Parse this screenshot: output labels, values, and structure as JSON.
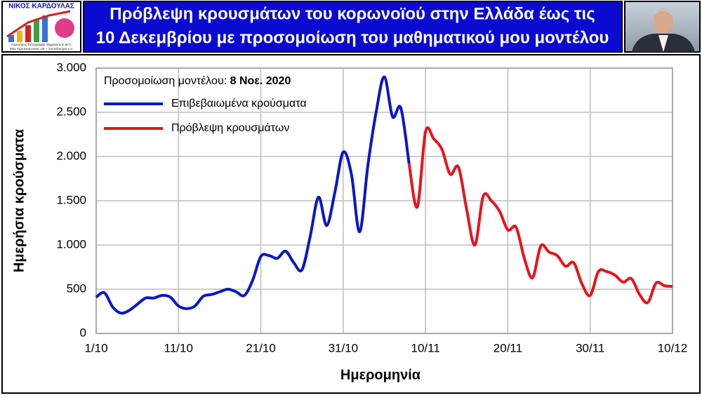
{
  "header": {
    "title_lines": [
      "Πρόβλεψη κρουσμάτων του κορωνοϊού στην Ελλάδα έως τις",
      "10 Δεκεμβρίου με προσομοίωση του μαθηματικού μου μοντέλου"
    ],
    "logo_name": "ΝΙΚΟΣ ΚΑΡΔΟΥΛΑΣ",
    "logo_lines": [
      "Αγρονόμος Τοπογράφος Μηχανικός Ε.Μ.Π.",
      "MSc Τηλεπικοινωνίες UK – Συνταξιούχος ε.α."
    ]
  },
  "chart_data": {
    "type": "line",
    "annotation_label": "Προσομοίωση μοντέλου:",
    "annotation_date": "8 Νοε. 2020",
    "x_label": "Ημερομηνία",
    "y_label": "Ημερήσια κρούσματα",
    "x": [
      0,
      1,
      2,
      3,
      4,
      5,
      6,
      7,
      8,
      9,
      10,
      11,
      12,
      13,
      14,
      15,
      16,
      17,
      18,
      19,
      20,
      21,
      22,
      23,
      24,
      25,
      26,
      27,
      28,
      29,
      30,
      31,
      32,
      33,
      34,
      35,
      36,
      37,
      38,
      39,
      40,
      41,
      42,
      43,
      44,
      45,
      46,
      47,
      48,
      49,
      50,
      51,
      52,
      53,
      54,
      55,
      56,
      57,
      58,
      59,
      60,
      61,
      62,
      63,
      64,
      65,
      66,
      67,
      68,
      69,
      70
    ],
    "series": [
      {
        "name": "Επιβεβαιωμένα κρούσματα",
        "color": "#0a16c8",
        "values": [
          410,
          460,
          300,
          230,
          260,
          330,
          400,
          400,
          430,
          410,
          310,
          280,
          310,
          420,
          440,
          470,
          500,
          470,
          430,
          600,
          870,
          880,
          850,
          930,
          800,
          720,
          1100,
          1540,
          1220,
          1600,
          2050,
          1800,
          1150,
          1900,
          2500,
          2900,
          2450,
          2550,
          1920,
          null,
          null,
          null,
          null,
          null,
          null,
          null,
          null,
          null,
          null,
          null,
          null,
          null,
          null,
          null,
          null,
          null,
          null,
          null,
          null,
          null,
          null,
          null,
          null,
          null,
          null,
          null,
          null,
          null,
          null,
          null,
          null
        ]
      },
      {
        "name": "Πρόβλεψη κρουσμάτων",
        "color": "#e8141c",
        "values": [
          null,
          null,
          null,
          null,
          null,
          null,
          null,
          null,
          null,
          null,
          null,
          null,
          null,
          null,
          null,
          null,
          null,
          null,
          null,
          null,
          null,
          null,
          null,
          null,
          null,
          null,
          null,
          null,
          null,
          null,
          null,
          null,
          null,
          null,
          null,
          null,
          null,
          null,
          1920,
          1430,
          2280,
          2200,
          2080,
          1800,
          1880,
          1400,
          1000,
          1550,
          1500,
          1380,
          1170,
          1200,
          850,
          630,
          990,
          920,
          880,
          760,
          800,
          560,
          430,
          700,
          700,
          660,
          580,
          620,
          440,
          350,
          570,
          540,
          530
        ]
      }
    ],
    "xlim": [
      0,
      70
    ],
    "xticks": [
      {
        "value": 0,
        "label": "1/10"
      },
      {
        "value": 10,
        "label": "11/10"
      },
      {
        "value": 20,
        "label": "21/10"
      },
      {
        "value": 30,
        "label": "31/10"
      },
      {
        "value": 40,
        "label": "10/11"
      },
      {
        "value": 50,
        "label": "20/11"
      },
      {
        "value": 60,
        "label": "30/11"
      },
      {
        "value": 70,
        "label": "10/12"
      }
    ],
    "ylim": [
      0,
      3000
    ],
    "yticks": [
      0,
      500,
      {
        "value": 1000,
        "label": "1.000"
      },
      {
        "value": 1500,
        "label": "1.500"
      },
      {
        "value": 2000,
        "label": "2.000"
      },
      {
        "value": 2500,
        "label": "2.500"
      },
      {
        "value": 3000,
        "label": "3.000"
      }
    ],
    "grid": true
  }
}
